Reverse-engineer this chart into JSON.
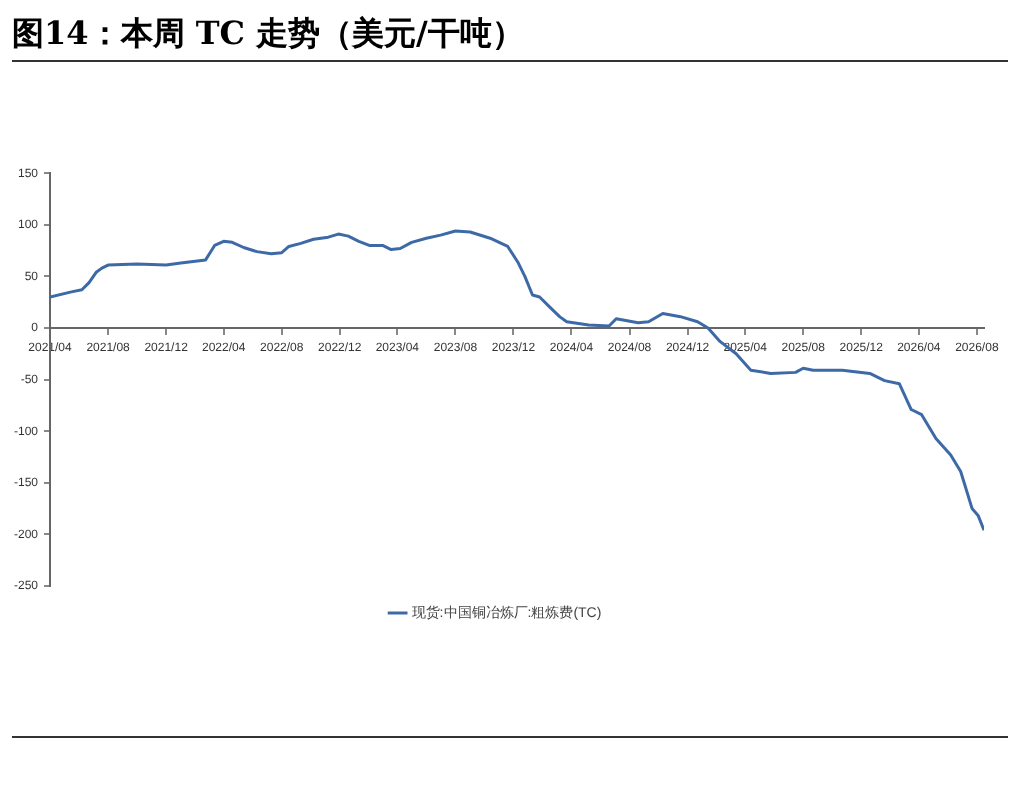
{
  "chart_data": {
    "type": "line",
    "title": "图14：本周 TC 走势（美元/干吨）",
    "x": [
      "2021-04-01",
      "2021-05-16",
      "2021-06-07",
      "2021-06-22",
      "2021-07-07",
      "2021-07-19",
      "2021-08-01",
      "2021-10-01",
      "2021-12-01",
      "2022-01-01",
      "2022-02-22",
      "2022-03-13",
      "2022-04-01",
      "2022-04-19",
      "2022-05-13",
      "2022-06-10",
      "2022-07-10",
      "2022-08-01",
      "2022-08-16",
      "2022-09-10",
      "2022-10-07",
      "2022-11-07",
      "2022-11-28",
      "2022-12-19",
      "2023-01-10",
      "2023-02-01",
      "2023-03-01",
      "2023-03-19",
      "2023-04-07",
      "2023-05-01",
      "2023-06-01",
      "2023-07-01",
      "2023-08-01",
      "2023-09-01",
      "2023-10-13",
      "2023-11-19",
      "2023-12-10",
      "2023-12-25",
      "2024-01-10",
      "2024-01-25",
      "2024-02-16",
      "2024-03-07",
      "2024-03-22",
      "2024-05-07",
      "2024-06-19",
      "2024-07-04",
      "2024-08-19",
      "2024-09-10",
      "2024-10-10",
      "2024-11-16",
      "2024-12-22",
      "2025-01-13",
      "2025-02-07",
      "2025-03-13",
      "2025-04-13",
      "2025-05-25",
      "2025-07-16",
      "2025-08-01",
      "2025-08-22",
      "2025-10-22",
      "2025-12-19",
      "2026-01-19",
      "2026-02-19",
      "2026-03-16",
      "2026-04-07",
      "2026-05-07",
      "2026-06-07",
      "2026-06-28",
      "2026-07-22",
      "2026-08-04",
      "2026-08-16"
    ],
    "series": [
      {
        "name": "现货:中国铜冶炼厂:粗炼费(TC)",
        "color": "#3d6aa6",
        "values": [
          30,
          35,
          37,
          44,
          54,
          58,
          61,
          62,
          61,
          63,
          66,
          80,
          84,
          83,
          78,
          74,
          72,
          73,
          79,
          82,
          86,
          88,
          91,
          89,
          84,
          80,
          80,
          76,
          77,
          83,
          87,
          90,
          94,
          93,
          87,
          79,
          64,
          50,
          32,
          30,
          20,
          11,
          6,
          3,
          2,
          9,
          5,
          6,
          14,
          11,
          6,
          0,
          -13,
          -25,
          -41,
          -44,
          -43,
          -39,
          -41,
          -41,
          -44,
          -51,
          -54,
          -79,
          -84,
          -107,
          -123,
          -139,
          -175,
          -182,
          -196
        ]
      }
    ],
    "xlim": [
      "2021-04-01",
      "2026-08-16"
    ],
    "xticks": [
      {
        "value": "2021-04",
        "label": "2021/04"
      },
      {
        "value": "2021-08",
        "label": "2021/08"
      },
      {
        "value": "2021-12",
        "label": "2021/12"
      },
      {
        "value": "2022-04",
        "label": "2022/04"
      },
      {
        "value": "2022-08",
        "label": "2022/08"
      },
      {
        "value": "2022-12",
        "label": "2022/12"
      },
      {
        "value": "2023-04",
        "label": "2023/04"
      },
      {
        "value": "2023-08",
        "label": "2023/08"
      },
      {
        "value": "2023-12",
        "label": "2023/12"
      },
      {
        "value": "2024-04",
        "label": "2024/04"
      },
      {
        "value": "2024-08",
        "label": "2024/08"
      },
      {
        "value": "2024-12",
        "label": "2024/12"
      },
      {
        "value": "2025-04",
        "label": "2025/04"
      },
      {
        "value": "2025-08",
        "label": "2025/08"
      },
      {
        "value": "2025-12",
        "label": "2025/12"
      },
      {
        "value": "2026-04",
        "label": "2026/04"
      },
      {
        "value": "2026-08",
        "label": "2026/08"
      }
    ],
    "ylim": [
      -250,
      150
    ],
    "yticks": [
      -250,
      -200,
      -150,
      -100,
      -50,
      0,
      50,
      100,
      150
    ],
    "grid": false,
    "legend": "bottom",
    "marker": "none",
    "line_style": "solid"
  }
}
